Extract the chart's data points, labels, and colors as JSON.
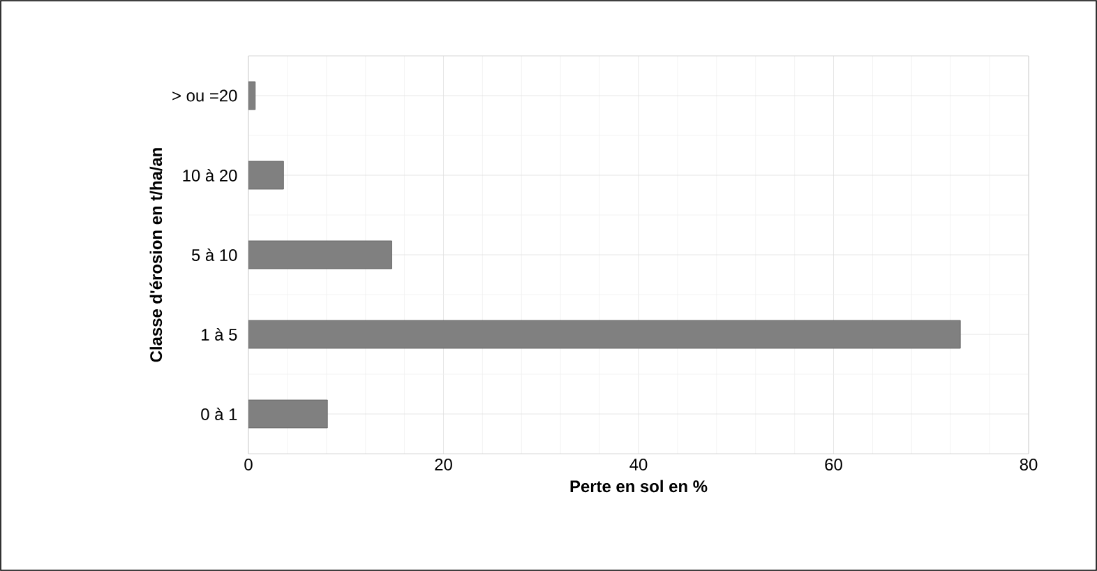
{
  "chart_data": {
    "type": "bar",
    "orientation": "horizontal",
    "xlabel": "Perte en sol en %",
    "ylabel": "Classe d'érosion en t/ha/an",
    "categories": [
      "> ou =20",
      "10 à 20",
      "5 à 10",
      "1 à 5",
      "0 à 1"
    ],
    "values": [
      0.7,
      3.6,
      14.7,
      73,
      8.1
    ],
    "color": "#808080",
    "xlim": [
      0,
      80
    ],
    "xticks": [
      0,
      20,
      40,
      60,
      80
    ],
    "grid": true
  }
}
